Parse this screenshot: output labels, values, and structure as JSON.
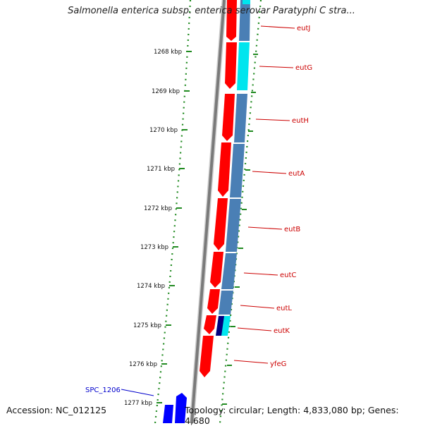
{
  "title": "Salmonella enterica subsp. enterica serovar Paratyphi C stra...",
  "footer": {
    "accession": "Accession: NC_012125",
    "topology": "Topology: circular; Length: 4,833,080 bp; Genes: 4,680"
  },
  "colors": {
    "forward_gene": "#ff0000",
    "reverse_gene": "#4a7fb5",
    "highlight_gene": "#00e5ee",
    "dark_gene": "#000080",
    "feature_blue": "#0000ff",
    "backbone": "#888888",
    "kbp_ticks": "#228b22",
    "gene_label": "#cc0000",
    "feature_label": "#0000cc"
  },
  "kbp_ticks": [
    "1268 kbp",
    "1269 kbp",
    "1270 kbp",
    "1271 kbp",
    "1272 kbp",
    "1273 kbp",
    "1274 kbp",
    "1275 kbp",
    "1276 kbp",
    "1277 kbp"
  ],
  "genes": [
    "eutJ",
    "eutG",
    "eutH",
    "eutA",
    "eutB",
    "eutC",
    "eutL",
    "eutK",
    "yfeG"
  ],
  "feature_label": "SPC_1206"
}
